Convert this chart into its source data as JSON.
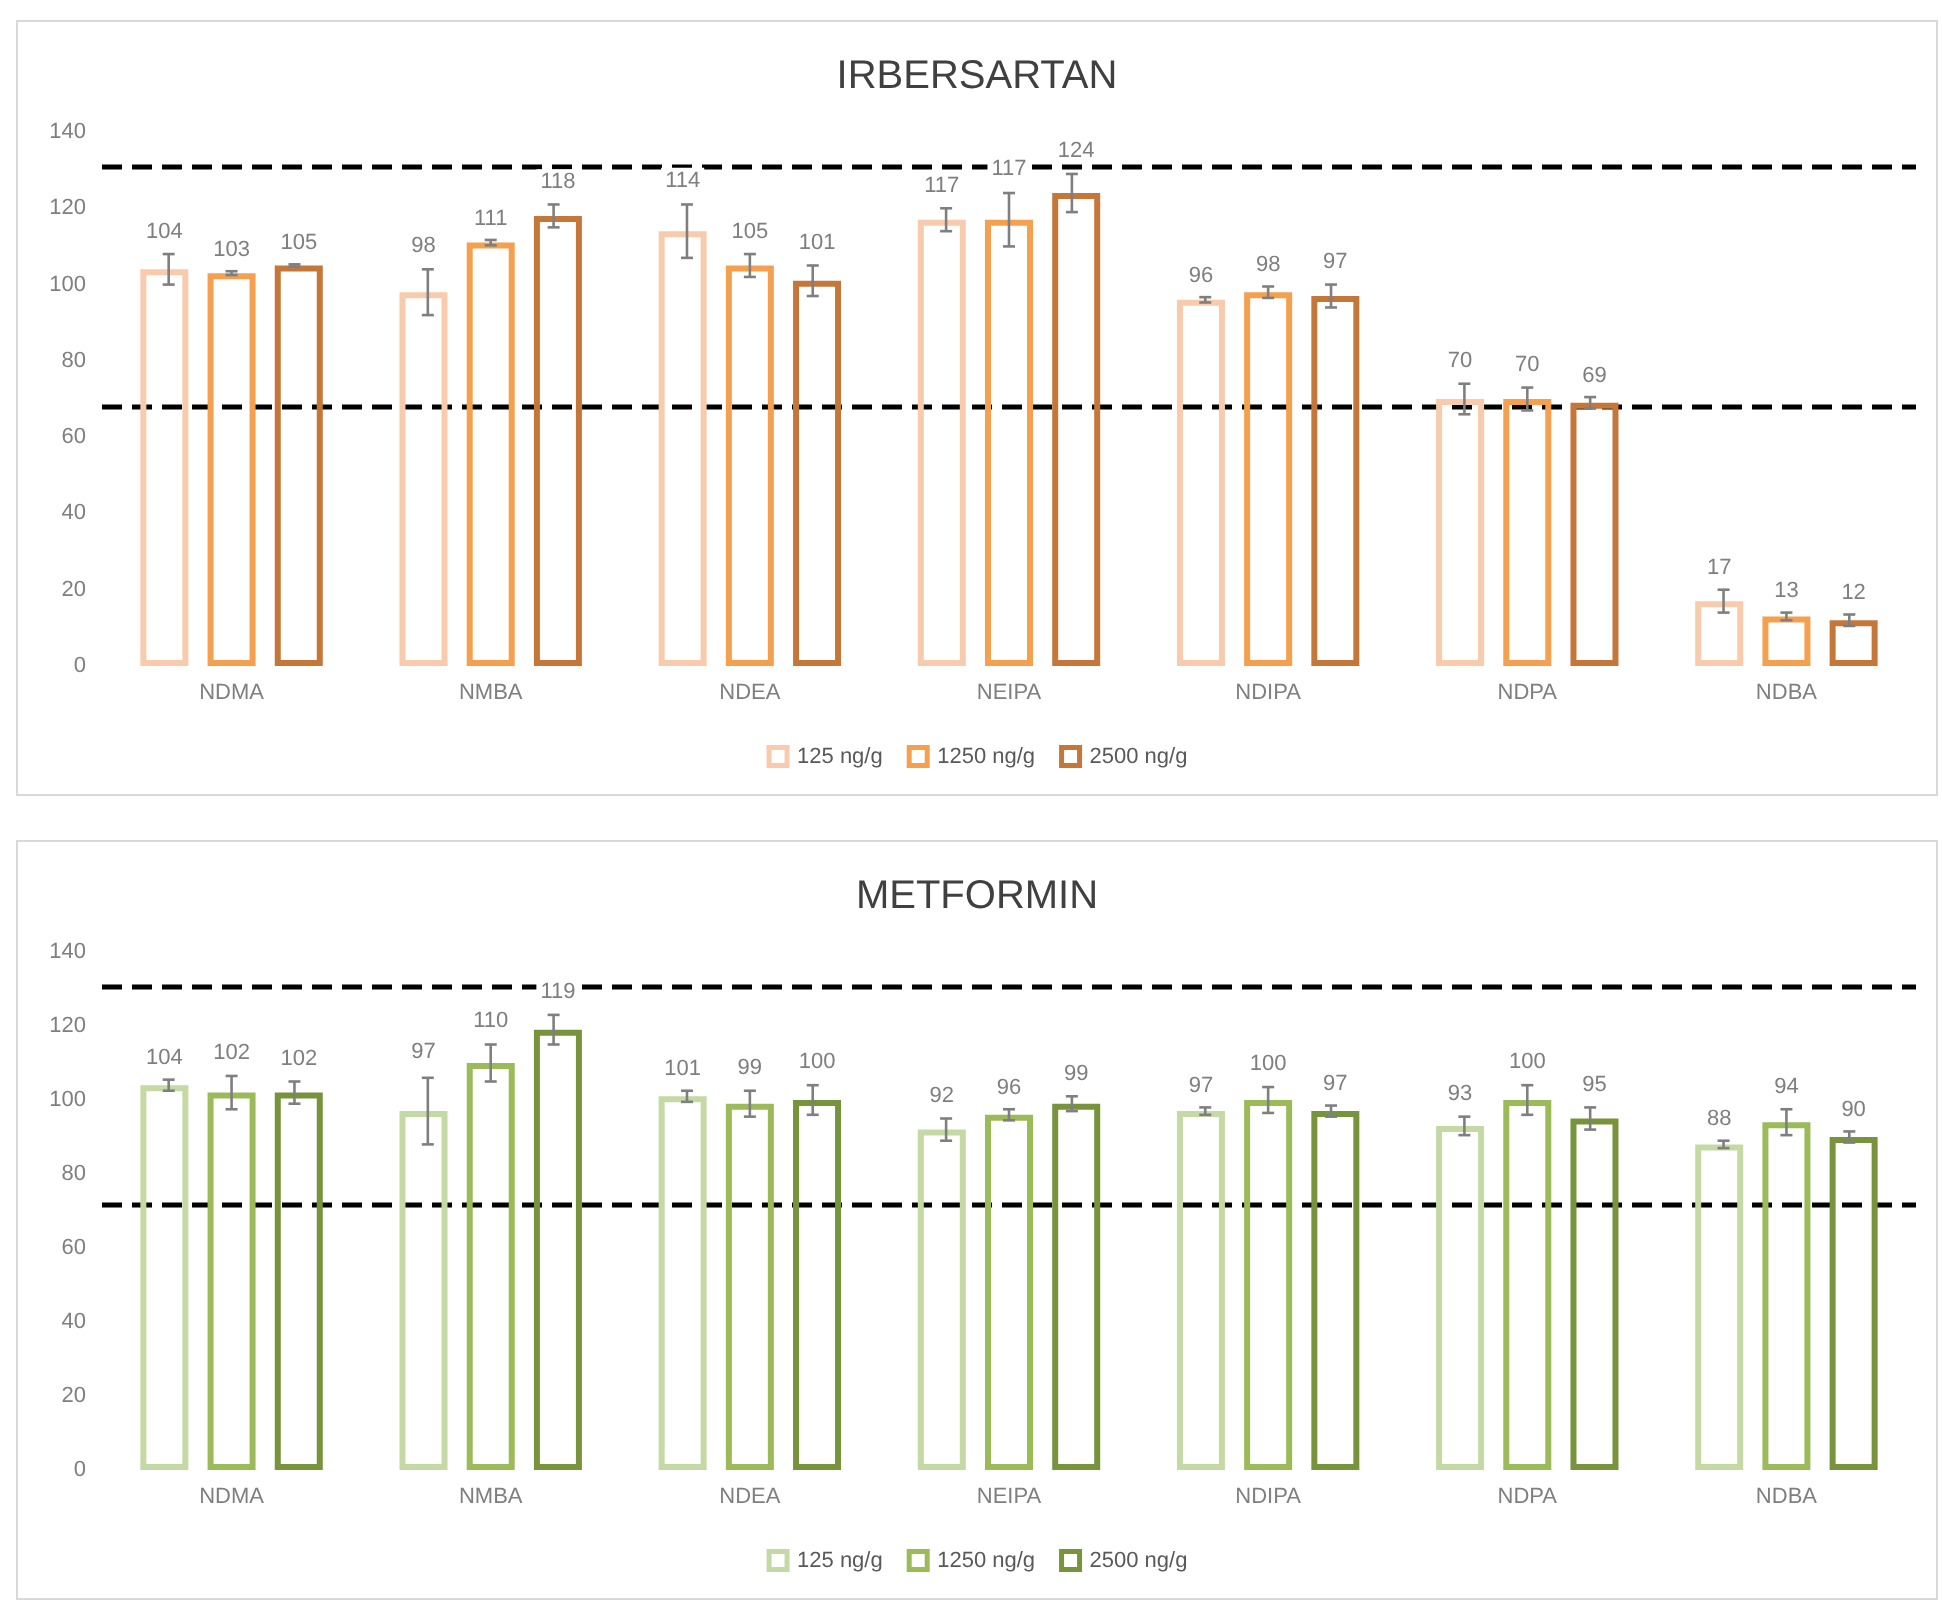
{
  "chart_data": [
    {
      "type": "bar",
      "title": "IRBERSARTAN",
      "categories": [
        "NDMA",
        "NMBA",
        "NDEA",
        "NEIPA",
        "NDIPA",
        "NDPA",
        "NDBA"
      ],
      "ylim": [
        0,
        140
      ],
      "yticks": [
        0,
        20,
        40,
        60,
        80,
        100,
        120,
        140
      ],
      "grid": false,
      "legend": "bottom",
      "data_labels": true,
      "series": [
        {
          "name": "125 ng/g",
          "color": "#f8cbad",
          "values": [
            104,
            98,
            114,
            117,
            96,
            70,
            17
          ],
          "errors": [
            4,
            6,
            7,
            3,
            0.7,
            4,
            3
          ]
        },
        {
          "name": "1250 ng/g",
          "color": "#f4a04e",
          "values": [
            103,
            111,
            105,
            117,
            98,
            70,
            13
          ],
          "errors": [
            0.5,
            0.7,
            3,
            7,
            1.5,
            3,
            1
          ]
        },
        {
          "name": "2500 ng/g",
          "color": "#c5773a",
          "values": [
            105,
            118,
            101,
            124,
            97,
            69,
            12
          ],
          "errors": [
            0.3,
            3,
            4,
            5,
            3,
            1.5,
            1.5
          ]
        }
      ],
      "ref_lines": [
        {
          "axis": "y",
          "value": 131,
          "color": "#000000",
          "line_style": "dashed"
        },
        {
          "axis": "y",
          "value": 68,
          "color": "#000000",
          "line_style": "dashed"
        }
      ]
    },
    {
      "type": "bar",
      "title": "METFORMIN",
      "categories": [
        "NDMA",
        "NMBA",
        "NDEA",
        "NEIPA",
        "NDIPA",
        "NDPA",
        "NDBA"
      ],
      "ylim": [
        0,
        140
      ],
      "yticks": [
        0,
        20,
        40,
        60,
        80,
        100,
        120,
        140
      ],
      "grid": false,
      "legend": "bottom",
      "data_labels": true,
      "series": [
        {
          "name": "125 ng/g",
          "color": "#c5d9a4",
          "values": [
            104,
            97,
            101,
            92,
            97,
            93,
            88
          ],
          "errors": [
            1.5,
            9,
            1.5,
            3,
            1,
            2.5,
            1
          ]
        },
        {
          "name": "1250 ng/g",
          "color": "#9bbb59",
          "values": [
            102,
            110,
            99,
            96,
            100,
            100,
            94
          ],
          "errors": [
            4.5,
            5,
            3.5,
            1.5,
            3.5,
            4,
            3.5
          ]
        },
        {
          "name": "2500 ng/g",
          "color": "#77933c",
          "values": [
            102,
            119,
            100,
            99,
            97,
            95,
            90
          ],
          "errors": [
            3,
            4,
            4,
            2,
            1.5,
            3,
            1.5
          ]
        }
      ],
      "ref_lines": [
        {
          "axis": "y",
          "value": 130.5,
          "color": "#000000",
          "line_style": "dashed"
        },
        {
          "axis": "y",
          "value": 72,
          "color": "#000000",
          "line_style": "dashed"
        }
      ]
    }
  ]
}
